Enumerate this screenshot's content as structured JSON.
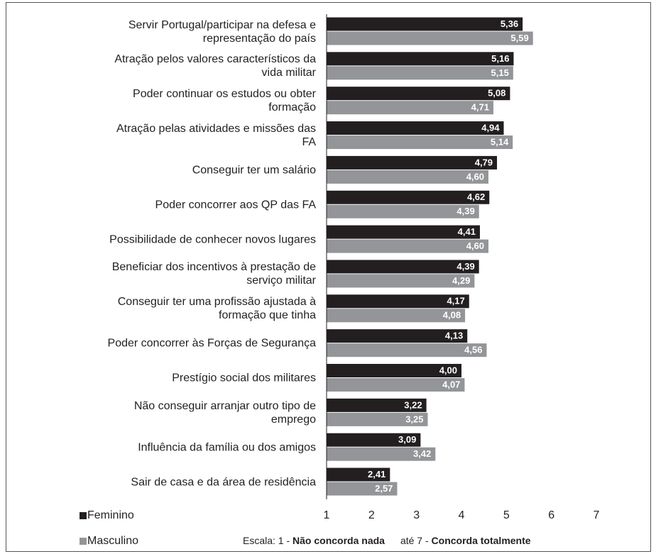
{
  "chart_data": {
    "type": "bar",
    "orientation": "horizontal",
    "categories": [
      "Servir Portugal/participar na defesa e\nrepresentação do país",
      "Atração pelos valores característicos da\nvida militar",
      "Poder continuar os estudos ou obter\nformação",
      "Atração pelas atividades e missões das\nFA",
      "Conseguir ter um salário",
      "Poder concorrer aos QP das FA",
      "Possibilidade de conhecer novos lugares",
      "Beneficiar dos incentivos à prestação de\nserviço militar",
      "Conseguir ter uma profissão ajustada à\nformação que tinha",
      "Poder concorrer às Forças de Segurança",
      "Prestígio social dos militares",
      "Não conseguir arranjar outro tipo de\nemprego",
      "Influência da família ou dos amigos",
      "Sair de casa e da área de residência"
    ],
    "series": [
      {
        "name": "Feminino",
        "color": "#231f20",
        "values": [
          5.36,
          5.16,
          5.08,
          4.94,
          4.79,
          4.62,
          4.41,
          4.39,
          4.17,
          4.13,
          4.0,
          3.22,
          3.09,
          2.41
        ],
        "value_labels": [
          "5,36",
          "5,16",
          "5,08",
          "4,94",
          "4,79",
          "4,62",
          "4,41",
          "4,39",
          "4,17",
          "4,13",
          "4,00",
          "3,22",
          "3,09",
          "2,41"
        ]
      },
      {
        "name": "Masculino",
        "color": "#939598",
        "values": [
          5.59,
          5.15,
          4.71,
          5.14,
          4.6,
          4.39,
          4.6,
          4.29,
          4.08,
          4.56,
          4.07,
          3.25,
          3.42,
          2.57
        ],
        "value_labels": [
          "5,59",
          "5,15",
          "4,71",
          "5,14",
          "4,60",
          "4,39",
          "4,60",
          "4,29",
          "4,08",
          "4,56",
          "4,07",
          "3,25",
          "3,42",
          "2,57"
        ]
      }
    ],
    "xlim": [
      1,
      7
    ],
    "xticks": [
      1,
      2,
      3,
      4,
      5,
      6,
      7
    ],
    "note": [
      "Escala: 1 - ",
      "Não concorda nada",
      "até 7 - ",
      "Concorda totalmente"
    ]
  }
}
